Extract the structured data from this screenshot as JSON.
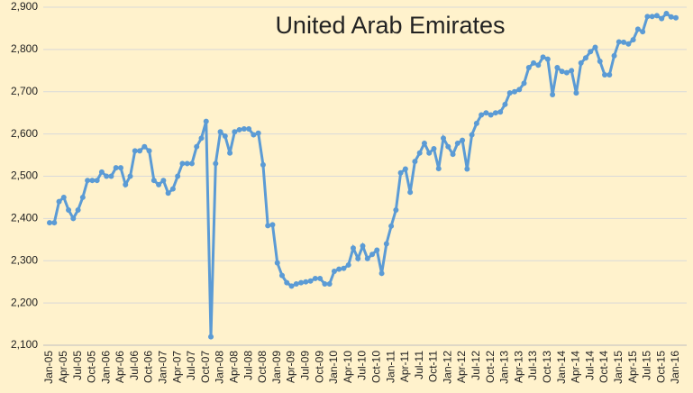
{
  "chart_data": {
    "type": "line",
    "title": "United Arab Emirates",
    "categories": [
      "Jan-05",
      null,
      null,
      "Apr-05",
      null,
      null,
      "Jul-05",
      null,
      null,
      "Oct-05",
      null,
      null,
      "Jan-06",
      null,
      null,
      "Apr-06",
      null,
      null,
      "Jul-06",
      null,
      null,
      "Oct-06",
      null,
      null,
      "Jan-07",
      null,
      null,
      "Apr-07",
      null,
      null,
      "Jul-07",
      null,
      null,
      "Oct-07",
      null,
      null,
      "Jan-08",
      null,
      null,
      "Apr-08",
      null,
      null,
      "Jul-08",
      null,
      null,
      "Oct-08",
      null,
      null,
      "Jan-09",
      null,
      null,
      "Apr-09",
      null,
      null,
      "Jul-09",
      null,
      null,
      "Oct-09",
      null,
      null,
      "Jan-10",
      null,
      null,
      "Apr-10",
      null,
      null,
      "Jul-10",
      null,
      null,
      "Oct-10",
      null,
      null,
      "Jan-11",
      null,
      null,
      "Apr-11",
      null,
      null,
      "Jul-11",
      null,
      null,
      "Oct-11",
      null,
      null,
      "Jan-12",
      null,
      null,
      "Apr-12",
      null,
      null,
      "Jul-12",
      null,
      null,
      "Oct-12",
      null,
      null,
      "Jan-13",
      null,
      null,
      "Apr-13",
      null,
      null,
      "Jul-13",
      null,
      null,
      "Oct-13",
      null,
      null,
      "Jan-14",
      null,
      null,
      "Apr-14",
      null,
      null,
      "Jul-14",
      null,
      null,
      "Oct-14",
      null,
      null,
      "Jan-15",
      null,
      null,
      "Apr-15",
      null,
      null,
      "Jul-15",
      null,
      null,
      "Oct-15",
      null,
      null,
      "Jan-16"
    ],
    "values": [
      2390,
      2390,
      2440,
      2450,
      2420,
      2400,
      2420,
      2450,
      2490,
      2490,
      2490,
      2510,
      2500,
      2500,
      2520,
      2520,
      2480,
      2500,
      2560,
      2560,
      2570,
      2560,
      2490,
      2480,
      2490,
      2460,
      2470,
      2500,
      2530,
      2530,
      2530,
      2570,
      2590,
      2630,
      2120,
      2530,
      2605,
      2595,
      2555,
      2605,
      2610,
      2612,
      2612,
      2598,
      2602,
      2527,
      2383,
      2385,
      2295,
      2265,
      2248,
      2240,
      2245,
      2248,
      2250,
      2252,
      2258,
      2258,
      2245,
      2245,
      2275,
      2280,
      2282,
      2290,
      2330,
      2305,
      2335,
      2305,
      2315,
      2325,
      2270,
      2340,
      2382,
      2420,
      2508,
      2517,
      2462,
      2535,
      2555,
      2578,
      2555,
      2565,
      2518,
      2590,
      2570,
      2552,
      2578,
      2585,
      2517,
      2598,
      2625,
      2645,
      2650,
      2645,
      2650,
      2652,
      2670,
      2697,
      2700,
      2705,
      2720,
      2757,
      2768,
      2763,
      2782,
      2777,
      2693,
      2757,
      2748,
      2745,
      2750,
      2697,
      2768,
      2780,
      2795,
      2805,
      2772,
      2740,
      2740,
      2785,
      2818,
      2817,
      2813,
      2823,
      2848,
      2842,
      2878,
      2878,
      2880,
      2873,
      2885,
      2877,
      2875
    ],
    "color": "#5b9bd5",
    "ylim": [
      2100,
      2900
    ],
    "yticks": [
      {
        "value": 2100,
        "label": "2,100"
      },
      {
        "value": 2200,
        "label": "2,200"
      },
      {
        "value": 2300,
        "label": "2,300"
      },
      {
        "value": 2400,
        "label": "2,400"
      },
      {
        "value": 2500,
        "label": "2,500"
      },
      {
        "value": 2600,
        "label": "2,600"
      },
      {
        "value": 2700,
        "label": "2,700"
      },
      {
        "value": 2800,
        "label": "2,800"
      },
      {
        "value": 2900,
        "label": "2,900"
      }
    ],
    "grid": true
  }
}
